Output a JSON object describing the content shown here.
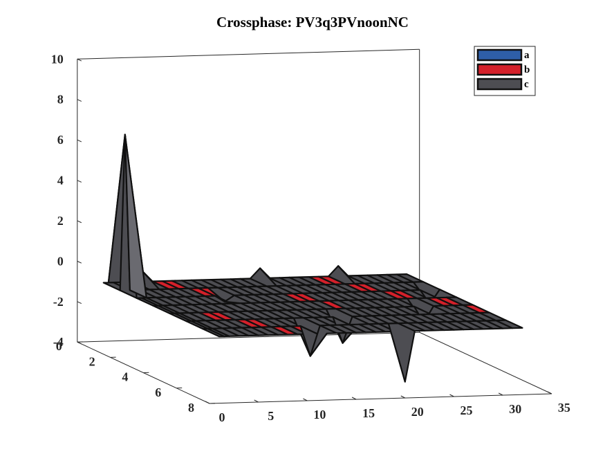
{
  "chart_data": {
    "type": "surface",
    "title": "Crossphase: PV3q3PVnoonNC",
    "xlabel": "",
    "ylabel": "",
    "zlabel": "",
    "xlim": [
      0,
      35
    ],
    "ylim": [
      0,
      8
    ],
    "zlim": [
      -4,
      10
    ],
    "x_ticks": [
      "0",
      "5",
      "10",
      "15",
      "20",
      "25",
      "30",
      "35"
    ],
    "y_ticks": [
      "0",
      "2",
      "4",
      "6",
      "8"
    ],
    "z_ticks": [
      "-4",
      "-2",
      "0",
      "2",
      "4",
      "6",
      "8",
      "10"
    ],
    "grid": false,
    "legend_position": "top-right",
    "series": [
      {
        "name": "a",
        "color": "#2e5ea8"
      },
      {
        "name": "b",
        "color": "#d4202a"
      },
      {
        "name": "c",
        "color": "#4d4d52"
      }
    ],
    "surface": {
      "x_start": 1,
      "x_end": 32,
      "y_start": 1,
      "y_end": 8,
      "base_z": -0.7,
      "peaks": [
        {
          "x": 1.5,
          "y": 2,
          "z": 7.0
        },
        {
          "x": 5,
          "y": 1,
          "z": -0.2
        },
        {
          "x": 10,
          "y": 3,
          "z": -1.0
        },
        {
          "x": 12,
          "y": 7,
          "z": -2.2
        },
        {
          "x": 17,
          "y": 1,
          "z": -0.2
        },
        {
          "x": 17,
          "y": 6,
          "z": -2.0
        },
        {
          "x": 20,
          "y": 8,
          "z": -3.2
        },
        {
          "x": 25,
          "y": 1,
          "z": -0.2
        },
        {
          "x": 27,
          "y": 5,
          "z": -1.5
        },
        {
          "x": 31,
          "y": 3,
          "z": -1.4
        }
      ],
      "red_cells": [
        [
          4,
          5
        ],
        [
          5,
          5
        ],
        [
          6,
          6
        ],
        [
          7,
          6
        ],
        [
          8,
          7
        ],
        [
          10,
          7
        ],
        [
          6,
          1
        ],
        [
          7,
          1
        ],
        [
          8,
          2
        ],
        [
          9,
          2
        ],
        [
          16,
          3
        ],
        [
          17,
          3
        ],
        [
          18,
          4
        ],
        [
          22,
          1
        ],
        [
          23,
          1
        ],
        [
          24,
          2
        ],
        [
          25,
          2
        ],
        [
          26,
          3
        ],
        [
          27,
          3
        ],
        [
          29,
          4
        ],
        [
          30,
          4
        ],
        [
          31,
          5
        ]
      ]
    }
  }
}
